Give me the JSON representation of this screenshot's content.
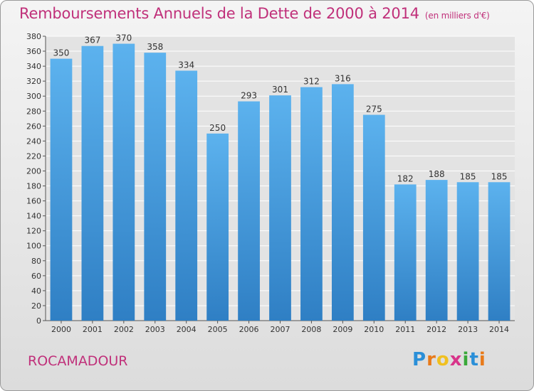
{
  "chart_data": {
    "type": "bar",
    "title": "Remboursements Annuels de la Dette de 2000 à 2014",
    "subtitle": "(en milliers d'€)",
    "categories": [
      "2000",
      "2001",
      "2002",
      "2003",
      "2004",
      "2005",
      "2006",
      "2007",
      "2008",
      "2009",
      "2010",
      "2011",
      "2012",
      "2013",
      "2014"
    ],
    "values": [
      350,
      367,
      370,
      358,
      334,
      250,
      293,
      301,
      312,
      316,
      275,
      182,
      188,
      185,
      185
    ],
    "xlabel": "",
    "ylabel": "",
    "ylim": [
      0,
      380
    ],
    "ytick_step": 20,
    "grid": true,
    "bar_color": "#4a9fe0"
  },
  "place_name": "ROCAMADOUR",
  "logo": {
    "letters": [
      "P",
      "r",
      "o",
      "x",
      "i",
      "t",
      "i"
    ],
    "colors": [
      "#2a8fd8",
      "#e87a1a",
      "#f0c020",
      "#d8348a",
      "#3aa83a",
      "#2a8fd8",
      "#e87a1a"
    ]
  }
}
